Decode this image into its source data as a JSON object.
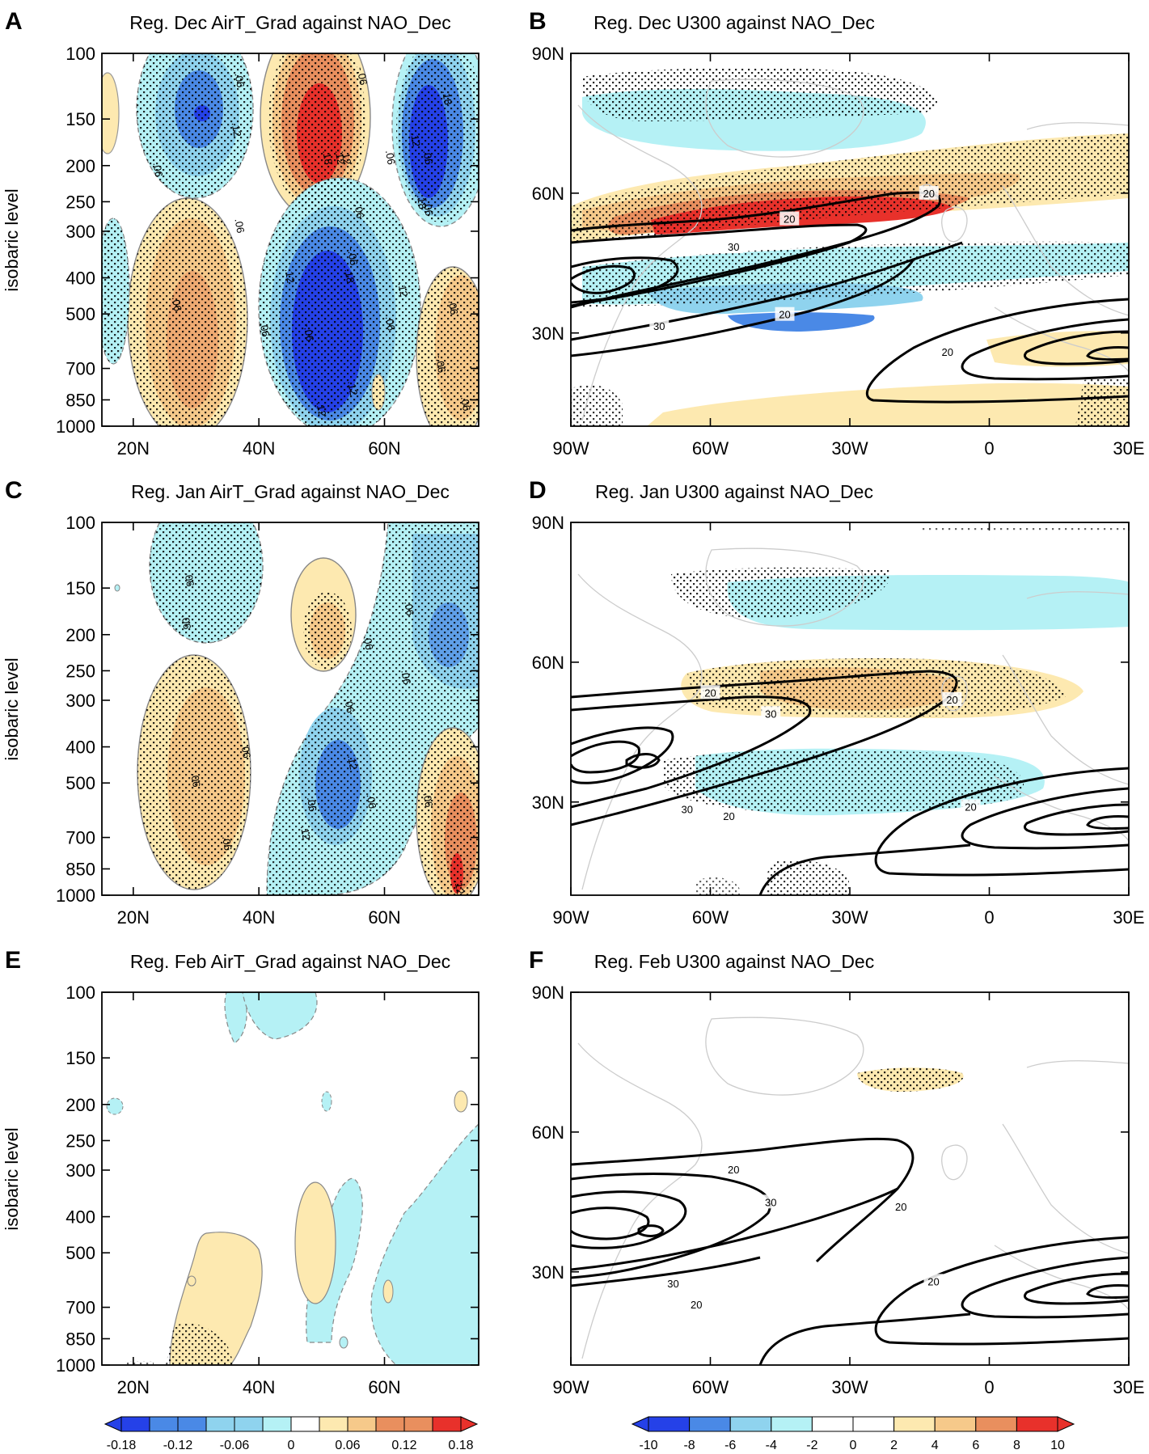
{
  "figure": {
    "panels": [
      {
        "letter": "A",
        "kind": "lat",
        "title": "Reg. Dec AirT_Grad against NAO_Dec"
      },
      {
        "letter": "B",
        "kind": "map",
        "title": "Reg. Dec U300 against NAO_Dec"
      },
      {
        "letter": "C",
        "kind": "lat",
        "title": "Reg. Jan AirT_Grad against NAO_Dec"
      },
      {
        "letter": "D",
        "kind": "map",
        "title": "Reg. Jan U300 against NAO_Dec"
      },
      {
        "letter": "E",
        "kind": "lat",
        "title": "Reg. Feb AirT_Grad against NAO_Dec"
      },
      {
        "letter": "F",
        "kind": "map",
        "title": "Reg. Feb U300 against NAO_Dec"
      }
    ],
    "colors": {
      "neg4": "#2541e8",
      "neg3": "#4a89e6",
      "neg2": "#8fd3ee",
      "neg1": "#b5f1f5",
      "pos1": "#fde9b0",
      "pos2": "#f6c98a",
      "pos3": "#e98f5e",
      "pos4": "#e8312b",
      "contour": "#000000",
      "coast": "#cccccc"
    }
  },
  "chart_data": [
    {
      "panel": "A",
      "type": "heatmap",
      "title": "Reg. Dec AirT_Grad against NAO_Dec",
      "x_ticks": [
        "20N",
        "40N",
        "60N"
      ],
      "x_tick_values": [
        20,
        40,
        60
      ],
      "xlim": [
        15,
        75
      ],
      "ylabel": "isobaric level",
      "y_ticks": [
        "100",
        "150",
        "200",
        "250",
        "300",
        "400",
        "500",
        "700",
        "850",
        "1000"
      ],
      "y_tick_values": [
        100,
        150,
        200,
        250,
        300,
        400,
        500,
        700,
        850,
        1000
      ],
      "ylim": [
        100,
        1000
      ],
      "yscale": "log",
      "contour_labels": [
        {
          "text": "-.06",
          "lat": 56.5,
          "p": 115
        },
        {
          "text": ".06",
          "lat": 37,
          "p": 118
        },
        {
          "text": ".12",
          "lat": 53,
          "p": 190
        },
        {
          "text": ".18",
          "lat": 51,
          "p": 190
        },
        {
          "text": ".12",
          "lat": 36.5,
          "p": 160
        },
        {
          "text": ".06",
          "lat": 24,
          "p": 205
        },
        {
          "text": "-.06",
          "lat": 56,
          "p": 262
        },
        {
          "text": ".12",
          "lat": 54,
          "p": 190
        },
        {
          "text": ".06",
          "lat": 61,
          "p": 190
        },
        {
          "text": ".06",
          "lat": 67,
          "p": 190
        },
        {
          "text": "-.18",
          "lat": 70,
          "p": 130
        },
        {
          "text": "-.06",
          "lat": 67,
          "p": 258
        },
        {
          "text": ".12",
          "lat": 65,
          "p": 170
        },
        {
          "text": ".18",
          "lat": 66,
          "p": 250
        },
        {
          "text": "-.06",
          "lat": 55,
          "p": 350
        },
        {
          "text": ".12",
          "lat": 45,
          "p": 395
        },
        {
          "text": ".18",
          "lat": 54.5,
          "p": 395
        },
        {
          "text": ".12",
          "lat": 63,
          "p": 430
        },
        {
          "text": ".06",
          "lat": 37,
          "p": 290
        },
        {
          "text": ".06",
          "lat": 27,
          "p": 470
        },
        {
          "text": ".06",
          "lat": 41,
          "p": 550
        },
        {
          "text": "-.06",
          "lat": 48,
          "p": 560
        },
        {
          "text": ".06",
          "lat": 71,
          "p": 480
        },
        {
          "text": ".06",
          "lat": 61,
          "p": 530
        },
        {
          "text": "-.06",
          "lat": 69,
          "p": 680
        },
        {
          "text": ".06",
          "lat": 73,
          "p": 870
        },
        {
          "text": ".12",
          "lat": 55,
          "p": 790
        },
        {
          "text": ".12",
          "lat": 50,
          "p": 900
        }
      ]
    },
    {
      "panel": "B",
      "type": "heatmap",
      "title": "Reg. Dec U300 against NAO_Dec",
      "x_ticks": [
        "90W",
        "60W",
        "30W",
        "0",
        "30E"
      ],
      "x_tick_values": [
        -90,
        -60,
        -30,
        0,
        30
      ],
      "xlim": [
        -90,
        30
      ],
      "y_ticks": [
        "30N",
        "60N",
        "90N"
      ],
      "y_tick_values": [
        30,
        60,
        90
      ],
      "ylim": [
        10,
        90
      ],
      "contour_labels": [
        {
          "text": "20",
          "lat": 60,
          "lon": -13
        },
        {
          "text": "20",
          "lat": 54.5,
          "lon": -43
        },
        {
          "text": "30",
          "lat": 48.5,
          "lon": -55
        },
        {
          "text": "30",
          "lat": 31.5,
          "lon": -71
        },
        {
          "text": "20",
          "lat": 34,
          "lon": -44
        },
        {
          "text": "20",
          "lat": 26,
          "lon": -9
        }
      ]
    },
    {
      "panel": "C",
      "type": "heatmap",
      "title": "Reg. Jan AirT_Grad against NAO_Dec",
      "x_ticks": [
        "20N",
        "40N",
        "60N"
      ],
      "x_tick_values": [
        20,
        40,
        60
      ],
      "xlim": [
        15,
        75
      ],
      "ylabel": "isobaric level",
      "y_ticks": [
        "100",
        "150",
        "200",
        "250",
        "300",
        "400",
        "500",
        "700",
        "850",
        "1000"
      ],
      "y_tick_values": [
        100,
        150,
        200,
        250,
        300,
        400,
        500,
        700,
        850,
        1000
      ],
      "ylim": [
        100,
        1000
      ],
      "yscale": "log",
      "contour_labels": [
        {
          "text": ".06",
          "lat": 29,
          "p": 142
        },
        {
          "text": ".06",
          "lat": 28.5,
          "p": 185
        },
        {
          "text": ".06",
          "lat": 57.5,
          "p": 210
        },
        {
          "text": ".06",
          "lat": 64,
          "p": 170
        },
        {
          "text": ".06",
          "lat": 63.5,
          "p": 260
        },
        {
          "text": ".06",
          "lat": 54.5,
          "p": 310
        },
        {
          "text": ".06",
          "lat": 38,
          "p": 410
        },
        {
          "text": ".06",
          "lat": 30,
          "p": 490
        },
        {
          "text": ".12",
          "lat": 55,
          "p": 440
        },
        {
          "text": ".06",
          "lat": 58,
          "p": 560
        },
        {
          "text": ".06",
          "lat": 48.5,
          "p": 570
        },
        {
          "text": ".12",
          "lat": 47.5,
          "p": 680
        },
        {
          "text": ".06",
          "lat": 67,
          "p": 555
        },
        {
          "text": ".06",
          "lat": 35,
          "p": 725
        },
        {
          "text": ".12",
          "lat": 72,
          "p": 950
        }
      ]
    },
    {
      "panel": "D",
      "type": "heatmap",
      "title": "Reg. Jan U300 against NAO_Dec",
      "x_ticks": [
        "90W",
        "60W",
        "30W",
        "0",
        "30E"
      ],
      "x_tick_values": [
        -90,
        -60,
        -30,
        0,
        30
      ],
      "xlim": [
        -90,
        30
      ],
      "y_ticks": [
        "30N",
        "60N",
        "90N"
      ],
      "y_tick_values": [
        30,
        60,
        90
      ],
      "ylim": [
        10,
        90
      ],
      "contour_labels": [
        {
          "text": "20",
          "lat": 53.5,
          "lon": -60
        },
        {
          "text": "20",
          "lat": 52,
          "lon": -8
        },
        {
          "text": "30",
          "lat": 49,
          "lon": -47
        },
        {
          "text": "30",
          "lat": 28.5,
          "lon": -65
        },
        {
          "text": "20",
          "lat": 27,
          "lon": -56
        },
        {
          "text": "20",
          "lat": 29,
          "lon": -4
        }
      ]
    },
    {
      "panel": "E",
      "type": "heatmap",
      "title": "Reg. Feb AirT_Grad against NAO_Dec",
      "x_ticks": [
        "20N",
        "40N",
        "60N"
      ],
      "x_tick_values": [
        20,
        40,
        60
      ],
      "xlim": [
        15,
        75
      ],
      "ylabel": "isobaric level",
      "y_ticks": [
        "100",
        "150",
        "200",
        "250",
        "300",
        "400",
        "500",
        "700",
        "850",
        "1000"
      ],
      "y_tick_values": [
        100,
        150,
        200,
        250,
        300,
        400,
        500,
        700,
        850,
        1000
      ],
      "ylim": [
        100,
        1000
      ],
      "yscale": "log",
      "contour_labels": []
    },
    {
      "panel": "F",
      "type": "heatmap",
      "title": "Reg. Feb U300 against NAO_Dec",
      "x_ticks": [
        "90W",
        "60W",
        "30W",
        "0",
        "30E"
      ],
      "x_tick_values": [
        -90,
        -60,
        -30,
        0,
        30
      ],
      "xlim": [
        -90,
        30
      ],
      "y_ticks": [
        "30N",
        "60N",
        "90N"
      ],
      "y_tick_values": [
        30,
        60,
        90
      ],
      "ylim": [
        10,
        90
      ],
      "contour_labels": [
        {
          "text": "20",
          "lat": 52,
          "lon": -55
        },
        {
          "text": "30",
          "lat": 45,
          "lon": -47
        },
        {
          "text": "20",
          "lat": 44,
          "lon": -19
        },
        {
          "text": "30",
          "lat": 27.5,
          "lon": -68
        },
        {
          "text": "20",
          "lat": 23,
          "lon": -63
        },
        {
          "text": "20",
          "lat": 28,
          "lon": -12
        }
      ]
    }
  ],
  "colorbars": [
    {
      "name": "airt",
      "labels": [
        "-0.18",
        "-0.12",
        "-0.06",
        "0",
        "0.06",
        "0.12",
        "0.18"
      ],
      "label_positions": [
        0,
        2,
        4,
        6,
        8,
        10,
        12
      ]
    },
    {
      "name": "u300",
      "labels": [
        "-10",
        "-8",
        "-6",
        "-4",
        "-2",
        "0",
        "2",
        "4",
        "6",
        "8",
        "10"
      ],
      "label_positions": [
        0,
        1,
        2,
        3,
        4,
        5,
        6,
        7,
        8,
        9,
        10
      ]
    }
  ]
}
